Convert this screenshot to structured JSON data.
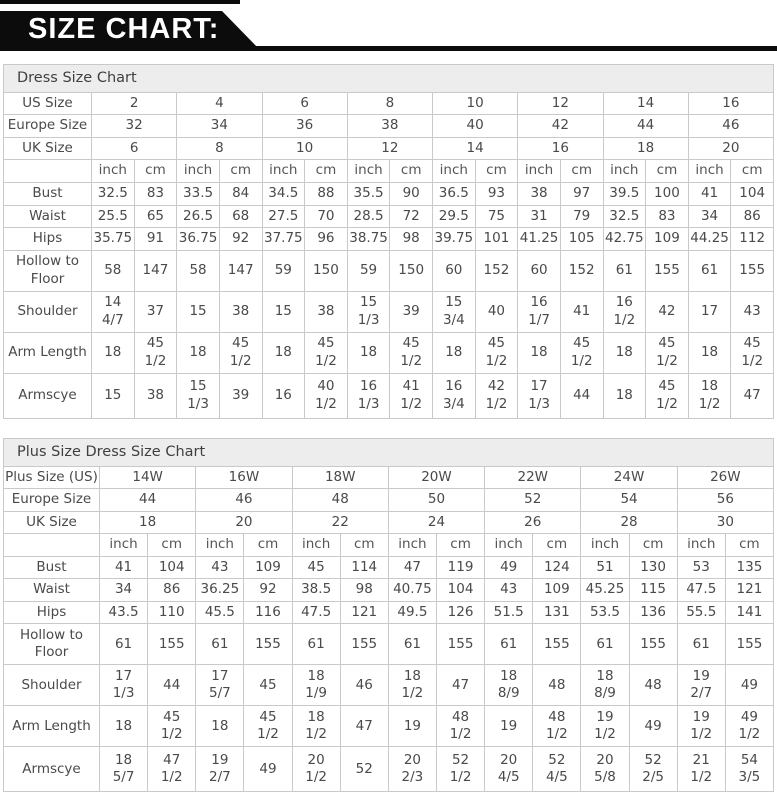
{
  "banner": {
    "title": "SIZE CHART:"
  },
  "colors": {
    "banner_bg": "#0c0c0c",
    "banner_text": "#ffffff",
    "title_row_bg": "#ededed",
    "label_cell_bg": "#f4f4f4",
    "cell_bg": "#ffffff",
    "border": "#c9c9c9",
    "text": "#4a4a4a"
  },
  "tables": [
    {
      "id": "dress-size-chart-table",
      "title": "Dress Size Chart",
      "size_rows": [
        {
          "label": "US Size",
          "values": [
            "2",
            "4",
            "6",
            "8",
            "10",
            "12",
            "14",
            "16"
          ]
        },
        {
          "label": "Europe Size",
          "values": [
            "32",
            "34",
            "36",
            "38",
            "40",
            "42",
            "44",
            "46"
          ]
        },
        {
          "label": "UK Size",
          "values": [
            "6",
            "8",
            "10",
            "12",
            "14",
            "16",
            "18",
            "20"
          ]
        }
      ],
      "unit_labels": [
        "inch",
        "cm"
      ],
      "measure_rows": [
        {
          "label": "Bust",
          "values": [
            "32.5",
            "83",
            "33.5",
            "84",
            "34.5",
            "88",
            "35.5",
            "90",
            "36.5",
            "93",
            "38",
            "97",
            "39.5",
            "100",
            "41",
            "104"
          ]
        },
        {
          "label": "Waist",
          "values": [
            "25.5",
            "65",
            "26.5",
            "68",
            "27.5",
            "70",
            "28.5",
            "72",
            "29.5",
            "75",
            "31",
            "79",
            "32.5",
            "83",
            "34",
            "86"
          ]
        },
        {
          "label": "Hips",
          "values": [
            "35.75",
            "91",
            "36.75",
            "92",
            "37.75",
            "96",
            "38.75",
            "98",
            "39.75",
            "101",
            "41.25",
            "105",
            "42.75",
            "109",
            "44.25",
            "112"
          ]
        },
        {
          "label": "Hollow to Floor",
          "values": [
            "58",
            "147",
            "58",
            "147",
            "59",
            "150",
            "59",
            "150",
            "60",
            "152",
            "60",
            "152",
            "61",
            "155",
            "61",
            "155"
          ]
        },
        {
          "label": "Shoulder",
          "values": [
            "14 4/7",
            "37",
            "15",
            "38",
            "15",
            "38",
            "15 1/3",
            "39",
            "15 3/4",
            "40",
            "16 1/7",
            "41",
            "16 1/2",
            "42",
            "17",
            "43"
          ]
        },
        {
          "label": "Arm Length",
          "values": [
            "18",
            "45 1/2",
            "18",
            "45 1/2",
            "18",
            "45 1/2",
            "18",
            "45 1/2",
            "18",
            "45 1/2",
            "18",
            "45 1/2",
            "18",
            "45 1/2",
            "18",
            "45 1/2"
          ]
        },
        {
          "label": "Armscye",
          "values": [
            "15",
            "38",
            "15 1/3",
            "39",
            "16",
            "40 1/2",
            "16 1/3",
            "41 1/2",
            "16 3/4",
            "42 1/2",
            "17 1/3",
            "44",
            "18",
            "45 1/2",
            "18 1/2",
            "47"
          ]
        }
      ]
    },
    {
      "id": "plus-size-dress-size-chart-table",
      "title": "Plus Size Dress Size Chart",
      "size_rows": [
        {
          "label": "Plus Size (US)",
          "values": [
            "14W",
            "16W",
            "18W",
            "20W",
            "22W",
            "24W",
            "26W"
          ]
        },
        {
          "label": "Europe Size",
          "values": [
            "44",
            "46",
            "48",
            "50",
            "52",
            "54",
            "56"
          ]
        },
        {
          "label": "UK Size",
          "values": [
            "18",
            "20",
            "22",
            "24",
            "26",
            "28",
            "30"
          ]
        }
      ],
      "unit_labels": [
        "inch",
        "cm"
      ],
      "measure_rows": [
        {
          "label": "Bust",
          "values": [
            "41",
            "104",
            "43",
            "109",
            "45",
            "114",
            "47",
            "119",
            "49",
            "124",
            "51",
            "130",
            "53",
            "135"
          ]
        },
        {
          "label": "Waist",
          "values": [
            "34",
            "86",
            "36.25",
            "92",
            "38.5",
            "98",
            "40.75",
            "104",
            "43",
            "109",
            "45.25",
            "115",
            "47.5",
            "121"
          ]
        },
        {
          "label": "Hips",
          "values": [
            "43.5",
            "110",
            "45.5",
            "116",
            "47.5",
            "121",
            "49.5",
            "126",
            "51.5",
            "131",
            "53.5",
            "136",
            "55.5",
            "141"
          ]
        },
        {
          "label": "Hollow to Floor",
          "values": [
            "61",
            "155",
            "61",
            "155",
            "61",
            "155",
            "61",
            "155",
            "61",
            "155",
            "61",
            "155",
            "61",
            "155"
          ]
        },
        {
          "label": "Shoulder",
          "values": [
            "17 1/3",
            "44",
            "17 5/7",
            "45",
            "18 1/9",
            "46",
            "18 1/2",
            "47",
            "18 8/9",
            "48",
            "18 8/9",
            "48",
            "19 2/7",
            "49"
          ]
        },
        {
          "label": "Arm Length",
          "values": [
            "18",
            "45 1/2",
            "18",
            "45 1/2",
            "18 1/2",
            "47",
            "19",
            "48 1/2",
            "19",
            "48 1/2",
            "19 1/2",
            "49",
            "19 1/2",
            "49 1/2"
          ]
        },
        {
          "label": "Armscye",
          "values": [
            "18 5/7",
            "47 1/2",
            "19 2/7",
            "49",
            "20 1/2",
            "52",
            "20 2/3",
            "52 1/2",
            "20 4/5",
            "52 4/5",
            "20 5/8",
            "52 2/5",
            "21 1/2",
            "54 3/5"
          ]
        }
      ]
    }
  ]
}
